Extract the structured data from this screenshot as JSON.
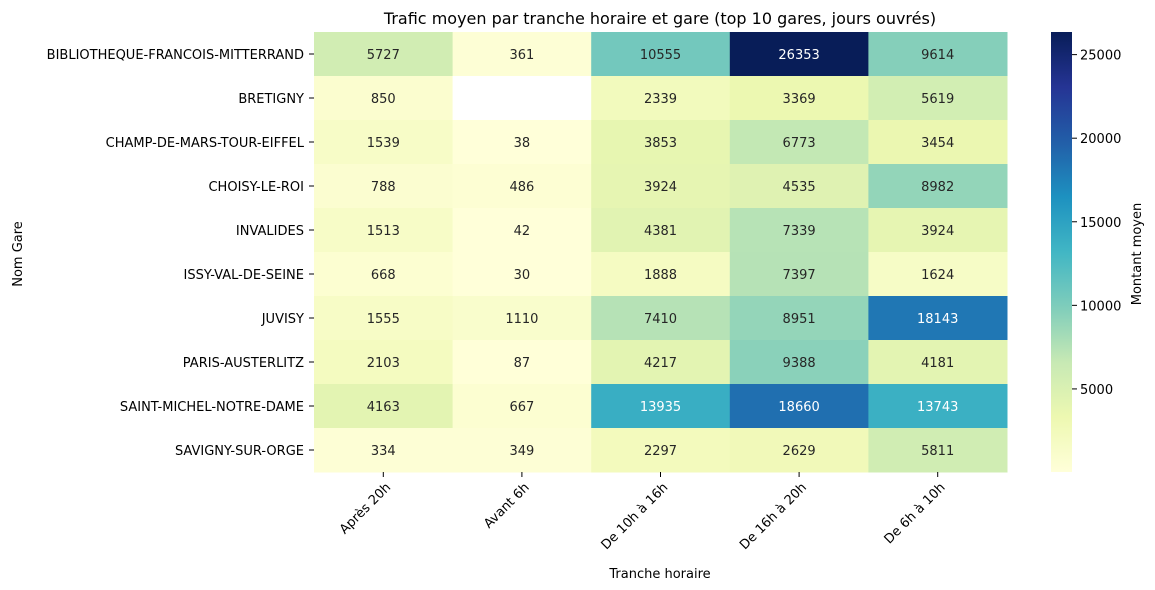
{
  "chart_data": {
    "type": "heatmap",
    "title": "Trafic moyen par tranche horaire et gare (top 10 gares, jours ouvrés)",
    "xlabel": "Tranche horaire",
    "ylabel": "Nom Gare",
    "colorbar_label": "Montant moyen",
    "colormap": "YlGnBu",
    "missing_color": "#ffffff",
    "zlim": [
      30,
      26353
    ],
    "colorbar_ticks": [
      5000,
      10000,
      15000,
      20000,
      25000
    ],
    "columns": [
      "Après 20h",
      "Avant 6h",
      "De 10h à 16h",
      "De 16h à 20h",
      "De 6h à 10h"
    ],
    "rows": [
      "BIBLIOTHEQUE-FRANCOIS-MITTERRAND",
      "BRETIGNY",
      "CHAMP-DE-MARS-TOUR-EIFFEL",
      "CHOISY-LE-ROI",
      "INVALIDES",
      "ISSY-VAL-DE-SEINE",
      "JUVISY",
      "PARIS-AUSTERLITZ",
      "SAINT-MICHEL-NOTRE-DAME",
      "SAVIGNY-SUR-ORGE"
    ],
    "values": [
      [
        5727,
        361,
        10555,
        26353,
        9614
      ],
      [
        850,
        null,
        2339,
        3369,
        5619
      ],
      [
        1539,
        38,
        3853,
        6773,
        3454
      ],
      [
        788,
        486,
        3924,
        4535,
        8982
      ],
      [
        1513,
        42,
        4381,
        7339,
        3924
      ],
      [
        668,
        30,
        1888,
        7397,
        1624
      ],
      [
        1555,
        1110,
        7410,
        8951,
        18143
      ],
      [
        2103,
        87,
        4217,
        9388,
        4181
      ],
      [
        4163,
        667,
        13935,
        18660,
        13743
      ],
      [
        334,
        349,
        2297,
        2629,
        5811
      ]
    ]
  }
}
